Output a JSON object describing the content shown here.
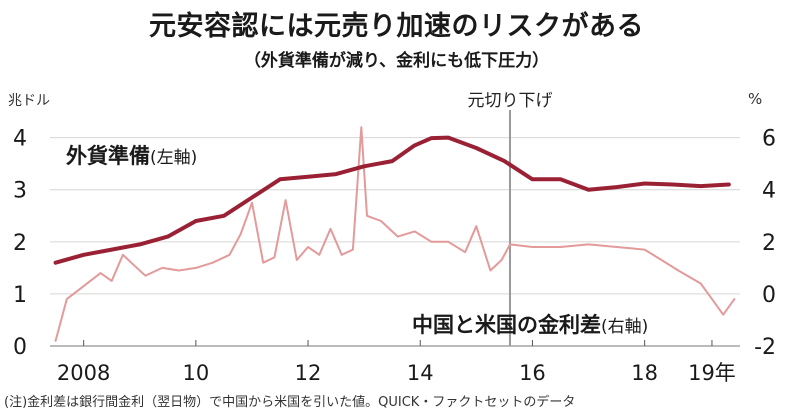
{
  "header": {
    "title": "元安容認には元売り加速のリスクがある",
    "subtitle": "（外貨準備が減り、金利にも低下圧力）"
  },
  "footer": {
    "note": "(注)金利差は銀行間金利（翌日物）で中国から米国を引いた値。QUICK・ファクトセットのデータ"
  },
  "chart_data": {
    "type": "line",
    "title": "元安容認には元売り加速のリスクがある",
    "subtitle": "（外貨準備が減り、金利にも低下圧力）",
    "left_axis": {
      "unit": "兆ドル",
      "ticks": [
        "0",
        "1",
        "2",
        "3",
        "4"
      ],
      "ylim": [
        0,
        4.3
      ]
    },
    "right_axis": {
      "unit": "%",
      "ticks": [
        "-2",
        "0",
        "2",
        "4",
        "6"
      ],
      "ylim": [
        -2,
        6.6
      ]
    },
    "x_axis": {
      "ticks": [
        "2008",
        "10",
        "12",
        "14",
        "16",
        "18",
        "19年"
      ],
      "xlim": [
        2007.4,
        2019.7
      ]
    },
    "annotation": {
      "label": "元切り下げ",
      "x": 2015.6
    },
    "colors": {
      "reserves": "#9a2134",
      "spread": "#e39a9a",
      "marker": "#9a9a9a"
    },
    "series": [
      {
        "name": "外貨準備",
        "axis_label": "(左軸)",
        "axis": "left",
        "x": [
          2007.5,
          2008.0,
          2008.5,
          2009.0,
          2009.5,
          2010.0,
          2010.5,
          2011.0,
          2011.5,
          2012.0,
          2012.5,
          2013.0,
          2013.5,
          2013.9,
          2014.2,
          2014.5,
          2015.0,
          2015.5,
          2016.0,
          2016.5,
          2017.0,
          2017.5,
          2018.0,
          2018.5,
          2019.0,
          2019.5
        ],
        "values": [
          1.6,
          1.75,
          1.85,
          1.95,
          2.1,
          2.4,
          2.5,
          2.85,
          3.2,
          3.25,
          3.3,
          3.45,
          3.55,
          3.85,
          3.99,
          4.0,
          3.8,
          3.55,
          3.2,
          3.2,
          3.0,
          3.05,
          3.12,
          3.1,
          3.07,
          3.1
        ]
      },
      {
        "name": "中国と米国の金利差",
        "axis_label": "(右軸)",
        "axis": "right",
        "x": [
          2007.5,
          2007.7,
          2008.0,
          2008.3,
          2008.5,
          2008.7,
          2008.9,
          2009.1,
          2009.4,
          2009.7,
          2010.0,
          2010.3,
          2010.6,
          2010.8,
          2011.0,
          2011.2,
          2011.4,
          2011.6,
          2011.8,
          2012.0,
          2012.2,
          2012.4,
          2012.6,
          2012.8,
          2012.95,
          2013.05,
          2013.3,
          2013.6,
          2013.9,
          2014.2,
          2014.5,
          2014.8,
          2015.0,
          2015.25,
          2015.45,
          2015.6,
          2016.0,
          2016.5,
          2017.0,
          2017.5,
          2018.0,
          2018.3,
          2018.6,
          2019.0,
          2019.2,
          2019.4,
          2019.6
        ],
        "values": [
          -1.8,
          -0.2,
          0.3,
          0.8,
          0.5,
          1.5,
          1.1,
          0.7,
          1.0,
          0.9,
          1.0,
          1.2,
          1.5,
          2.3,
          3.5,
          1.2,
          1.4,
          3.6,
          1.3,
          1.8,
          1.5,
          2.5,
          1.5,
          1.7,
          6.4,
          3.0,
          2.8,
          2.2,
          2.4,
          2.0,
          2.0,
          1.6,
          2.6,
          0.9,
          1.3,
          1.9,
          1.8,
          1.8,
          1.9,
          1.8,
          1.7,
          1.3,
          0.9,
          0.4,
          -0.2,
          -0.8,
          -0.2
        ]
      }
    ]
  }
}
